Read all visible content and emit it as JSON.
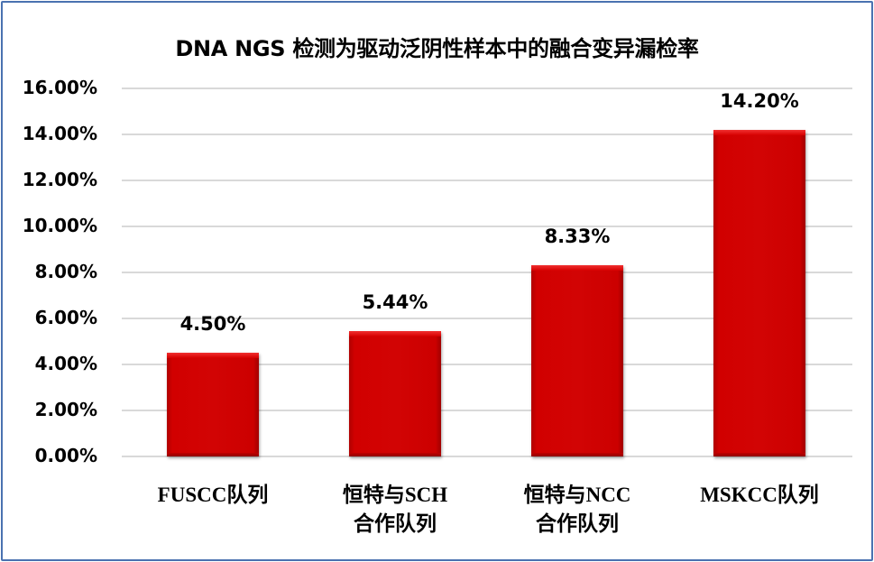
{
  "chart_data": {
    "type": "bar",
    "title": "DNA NGS 检测为驱动泛阴性样本中的融合变异漏检率",
    "categories": [
      "FUSCC队列",
      "恒特与SCH合作队列",
      "恒特与NCC合作队列",
      "MSKCC队列"
    ],
    "category_lines": [
      [
        "FUSCC队列"
      ],
      [
        "恒特与SCH",
        "合作队列"
      ],
      [
        "恒特与NCC",
        "合作队列"
      ],
      [
        "MSKCC队列"
      ]
    ],
    "values": [
      4.5,
      5.44,
      8.33,
      14.2
    ],
    "data_labels": [
      "4.50%",
      "5.44%",
      "8.33%",
      "14.20%"
    ],
    "xlabel": "",
    "ylabel": "",
    "ylim": [
      0,
      16
    ],
    "yticks": [
      "0.00%",
      "2.00%",
      "4.00%",
      "6.00%",
      "8.00%",
      "10.00%",
      "12.00%",
      "14.00%",
      "16.00%"
    ],
    "grid": true,
    "legend": "none",
    "bar_color": "#d10000",
    "border_color": "#4a72b0"
  }
}
